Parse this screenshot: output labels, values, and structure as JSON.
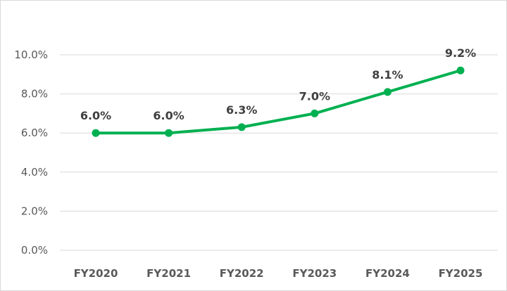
{
  "chart_data": {
    "type": "line",
    "categories": [
      "FY2020",
      "FY2021",
      "FY2022",
      "FY2023",
      "FY2024",
      "FY2025"
    ],
    "series": [
      {
        "values": [
          6.0,
          6.0,
          6.3,
          7.0,
          8.1,
          9.2
        ],
        "labels": [
          "6.0%",
          "6.0%",
          "6.3%",
          "7.0%",
          "8.1%",
          "9.2%"
        ],
        "color": "#00b050"
      }
    ],
    "yticks": [
      0,
      2,
      4,
      6,
      8,
      10
    ],
    "ytick_labels": [
      "0.0%",
      "2.0%",
      "4.0%",
      "6.0%",
      "8.0%",
      "10.0%"
    ],
    "ylim": [
      0,
      10
    ],
    "grid": "horizontal",
    "title": "",
    "xlabel": "",
    "ylabel": ""
  }
}
